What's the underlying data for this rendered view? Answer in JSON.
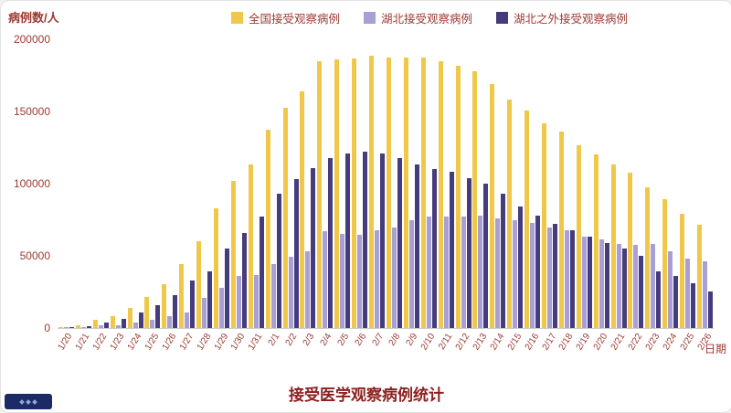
{
  "colors": {
    "national": "#efc84a",
    "hubei": "#a79fd6",
    "non_hubei": "#453c7d",
    "axis_text": "#9c3a32",
    "title_text": "#8c1f1f"
  },
  "chart_data": {
    "type": "bar",
    "title": "接受医学观察病例统计",
    "xlabel": "日期",
    "ylabel": "病例数/人",
    "ylim": [
      0,
      200000
    ],
    "yticks": [
      0,
      50000,
      100000,
      150000,
      200000
    ],
    "grid": false,
    "legend_position": "top",
    "categories": [
      "1/20",
      "1/21",
      "1/22",
      "1/23",
      "1/24",
      "1/25",
      "1/26",
      "1/27",
      "1/28",
      "1/29",
      "1/30",
      "1/31",
      "2/1",
      "2/2",
      "2/3",
      "2/4",
      "2/5",
      "2/6",
      "2/7",
      "2/8",
      "2/9",
      "2/10",
      "2/11",
      "2/12",
      "2/13",
      "2/14",
      "2/15",
      "2/16",
      "2/17",
      "2/18",
      "2/19",
      "2/20",
      "2/21",
      "2/22",
      "2/23",
      "2/24",
      "2/25",
      "2/26"
    ],
    "series": [
      {
        "name": "全国接受观察病例",
        "color": "#efc84a",
        "values": [
          700,
          2000,
          5800,
          8400,
          14000,
          21500,
          30500,
          44000,
          60000,
          83000,
          102000,
          113500,
          137500,
          152500,
          164000,
          185000,
          186000,
          186500,
          188500,
          187500,
          187500,
          187500,
          185000,
          181500,
          178000,
          169000,
          158500,
          150500,
          141500,
          136000,
          126500,
          120500,
          113500,
          107500,
          97500,
          89000,
          79000,
          71500
        ]
      },
      {
        "name": "湖北接受观察病例",
        "color": "#a79fd6",
        "values": [
          300,
          800,
          1800,
          1900,
          3500,
          5500,
          8000,
          11000,
          21000,
          28000,
          36000,
          36500,
          44500,
          49500,
          53000,
          67000,
          65000,
          64500,
          67500,
          69500,
          74500,
          77500,
          77000,
          77500,
          78000,
          76000,
          74500,
          72500,
          69500,
          68000,
          63500,
          61500,
          58500,
          57500,
          58500,
          53000,
          48000,
          46000
        ]
      },
      {
        "name": "湖北之外接受观察病例",
        "color": "#453c7d",
        "values": [
          400,
          1200,
          4000,
          6500,
          10500,
          16000,
          22500,
          33000,
          39000,
          55000,
          66000,
          77000,
          93000,
          103000,
          111000,
          118000,
          121000,
          122000,
          121000,
          118000,
          113000,
          110000,
          108000,
          104000,
          100000,
          93000,
          84000,
          78000,
          72000,
          68000,
          63000,
          59000,
          55000,
          50000,
          39000,
          36000,
          31000,
          25500
        ]
      }
    ]
  }
}
